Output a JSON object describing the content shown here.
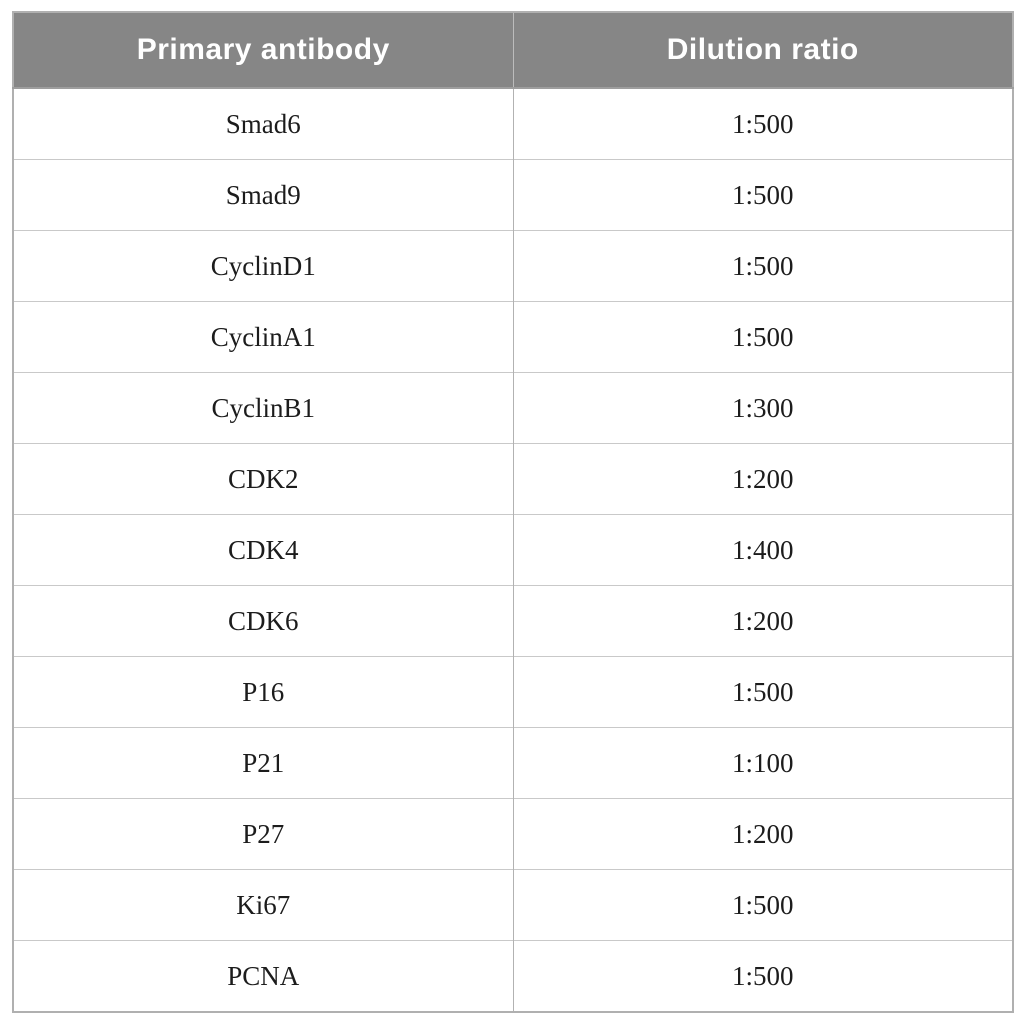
{
  "table": {
    "headers": [
      {
        "label": "Primary antibody"
      },
      {
        "label": "Dilution ratio"
      }
    ],
    "rows": [
      {
        "antibody": "Smad6",
        "dilution": "1:500"
      },
      {
        "antibody": "Smad9",
        "dilution": "1:500"
      },
      {
        "antibody": "CyclinD1",
        "dilution": "1:500"
      },
      {
        "antibody": "CyclinA1",
        "dilution": "1:500"
      },
      {
        "antibody": "CyclinB1",
        "dilution": "1:300"
      },
      {
        "antibody": "CDK2",
        "dilution": "1:200"
      },
      {
        "antibody": "CDK4",
        "dilution": "1:400"
      },
      {
        "antibody": "CDK6",
        "dilution": "1:200"
      },
      {
        "antibody": "P16",
        "dilution": "1:500"
      },
      {
        "antibody": "P21",
        "dilution": "1:100"
      },
      {
        "antibody": "P27",
        "dilution": "1:200"
      },
      {
        "antibody": "Ki67",
        "dilution": "1:500"
      },
      {
        "antibody": "PCNA",
        "dilution": "1:500"
      }
    ]
  },
  "colors": {
    "header_bg": "#868686",
    "header_text": "#ffffff",
    "body_text": "#1c1c1c",
    "row_border": "#c9c9c9",
    "col_border": "#b2b2b2",
    "outer_border": "#b0b0b0"
  }
}
